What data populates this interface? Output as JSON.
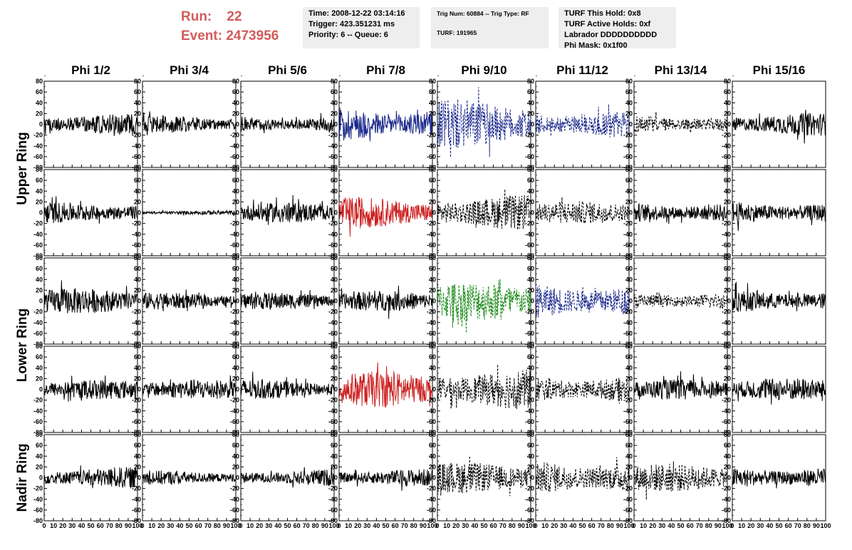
{
  "header": {
    "run_label": "Run:",
    "run_value": "22",
    "event_label": "Event:",
    "event_value": "2473956",
    "time": "Time: 2008-12-22 03:14:16",
    "trigger": "Trigger: 423.351231 ms",
    "priority": "Priority: 6 -- Queue: 6",
    "trig_num": "Trig Num: 60884 -- Trig Type: RF",
    "turf": "TURF: 191965",
    "turf_this_hold": "TURF This Hold: 0x8",
    "turf_active_holds": "TURF Active Holds: 0xf",
    "labrador": "Labrador DDDDDDDDDD",
    "phi_mask": "Phi Mask: 0x1f00"
  },
  "chart_data": {
    "type": "line",
    "columns": [
      "Phi 1/2",
      "Phi 3/4",
      "Phi 5/6",
      "Phi 7/8",
      "Phi 9/10",
      "Phi 11/12",
      "Phi 13/14",
      "Phi 15/16"
    ],
    "ring_labels": [
      "Upper Ring",
      "Lower Ring",
      "Nadir Ring"
    ],
    "ring_spans": [
      [
        0,
        1
      ],
      [
        2,
        3
      ],
      [
        4,
        4
      ]
    ],
    "xlim": [
      0,
      100
    ],
    "ylim": [
      -80,
      80
    ],
    "xticks": [
      0,
      10,
      20,
      30,
      40,
      50,
      60,
      70,
      80,
      90,
      100
    ],
    "xtick_labels": [
      "0",
      "10",
      "20",
      "30",
      "40",
      "50",
      "60",
      "70",
      "80",
      "90",
      "100"
    ],
    "yticks": [
      80,
      60,
      40,
      20,
      0,
      -20,
      -40,
      -60,
      -80
    ],
    "ytick_labels": [
      "80",
      "60",
      "40",
      "20",
      "0",
      "-20",
      "-40",
      "-60",
      "-80"
    ],
    "colors": {
      "black": "#000000",
      "blue": "#1c2a8c",
      "red": "#cc2222",
      "green": "#1e8c1e",
      "header_red": "#d35b5b",
      "box_gray": "#eeeeee"
    },
    "panels": [
      [
        {
          "amp": 15,
          "color": "black",
          "style": "solid"
        },
        {
          "amp": 12,
          "color": "black",
          "style": "solid"
        },
        {
          "amp": 12,
          "color": "black",
          "style": "solid"
        },
        {
          "amp": 25,
          "color": "blue",
          "style": "solid"
        },
        {
          "amp": 35,
          "color": "blue",
          "style": "dashed"
        },
        {
          "amp": 20,
          "color": "blue",
          "style": "dashed"
        },
        {
          "amp": 13,
          "color": "black",
          "style": "dashed"
        },
        {
          "amp": 16,
          "color": "black",
          "style": "solid"
        }
      ],
      [
        {
          "amp": 15,
          "color": "black",
          "style": "solid"
        },
        {
          "amp": 3,
          "color": "black",
          "style": "solid"
        },
        {
          "amp": 14,
          "color": "black",
          "style": "solid"
        },
        {
          "amp": 22,
          "color": "red",
          "style": "solid"
        },
        {
          "amp": 25,
          "color": "black",
          "style": "dashed"
        },
        {
          "amp": 16,
          "color": "black",
          "style": "dashed"
        },
        {
          "amp": 15,
          "color": "black",
          "style": "solid"
        },
        {
          "amp": 16,
          "color": "black",
          "style": "solid"
        }
      ],
      [
        {
          "amp": 18,
          "color": "black",
          "style": "solid"
        },
        {
          "amp": 12,
          "color": "black",
          "style": "solid"
        },
        {
          "amp": 12,
          "color": "black",
          "style": "solid"
        },
        {
          "amp": 14,
          "color": "black",
          "style": "solid"
        },
        {
          "amp": 28,
          "color": "green",
          "style": "dashed"
        },
        {
          "amp": 25,
          "color": "blue",
          "style": "dashed"
        },
        {
          "amp": 13,
          "color": "black",
          "style": "dashed"
        },
        {
          "amp": 16,
          "color": "black",
          "style": "solid"
        }
      ],
      [
        {
          "amp": 14,
          "color": "black",
          "style": "solid"
        },
        {
          "amp": 14,
          "color": "black",
          "style": "solid"
        },
        {
          "amp": 14,
          "color": "black",
          "style": "solid"
        },
        {
          "amp": 25,
          "color": "red",
          "style": "solid"
        },
        {
          "amp": 28,
          "color": "black",
          "style": "dashed"
        },
        {
          "amp": 20,
          "color": "black",
          "style": "dashed"
        },
        {
          "amp": 14,
          "color": "black",
          "style": "solid"
        },
        {
          "amp": 16,
          "color": "black",
          "style": "solid"
        }
      ],
      [
        {
          "amp": 15,
          "color": "black",
          "style": "solid"
        },
        {
          "amp": 10,
          "color": "black",
          "style": "solid"
        },
        {
          "amp": 12,
          "color": "black",
          "style": "solid"
        },
        {
          "amp": 12,
          "color": "black",
          "style": "solid"
        },
        {
          "amp": 22,
          "color": "black",
          "style": "dashed"
        },
        {
          "amp": 25,
          "color": "black",
          "style": "dashed"
        },
        {
          "amp": 20,
          "color": "black",
          "style": "dashed"
        },
        {
          "amp": 16,
          "color": "black",
          "style": "solid"
        }
      ]
    ]
  }
}
